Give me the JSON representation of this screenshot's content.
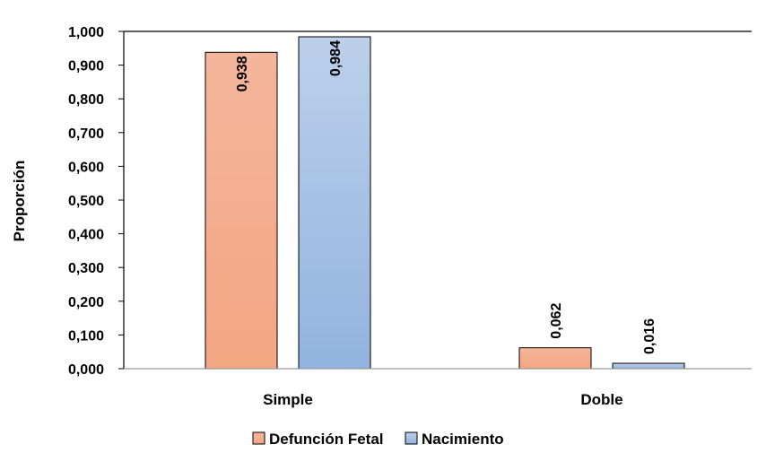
{
  "chart_data": {
    "type": "bar",
    "title": "",
    "xlabel": "",
    "ylabel": "Proporción",
    "categories": [
      "Simple",
      "Doble"
    ],
    "series": [
      {
        "name": "Defunción Fetal",
        "values": [
          0.938,
          0.062
        ],
        "labels": [
          "0,938",
          "0,062"
        ],
        "color_top": "#f4b69b",
        "color_bottom": "#f4a582",
        "stroke": "#000000"
      },
      {
        "name": "Nacimiento",
        "values": [
          0.984,
          0.016
        ],
        "labels": [
          "0,984",
          "0,016"
        ],
        "color_top": "#bcd0ea",
        "color_bottom": "#92b3e0",
        "stroke": "#000000"
      }
    ],
    "ylim": [
      0,
      1
    ],
    "yticks": [
      0,
      0.1,
      0.2,
      0.3,
      0.4,
      0.5,
      0.6,
      0.7,
      0.8,
      0.9,
      1.0
    ],
    "ytick_labels": [
      "0,000",
      "0,100",
      "0,200",
      "0,300",
      "0,400",
      "0,500",
      "0,600",
      "0,700",
      "0,800",
      "0,900",
      "1,000"
    ],
    "grid": false,
    "legend_position": "bottom"
  }
}
